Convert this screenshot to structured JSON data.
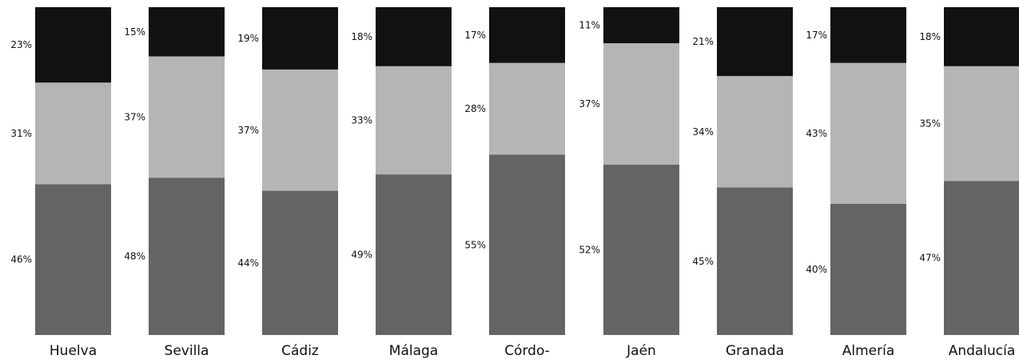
{
  "chart_data": {
    "type": "bar",
    "stacked": true,
    "normalized": true,
    "categories": [
      "Huelva",
      "Sevilla",
      "Cádiz",
      "Málaga",
      "Córdo-",
      "Jaén",
      "Granada",
      "Almería",
      "Andalucía"
    ],
    "series": [
      {
        "values": [
          46,
          48,
          44,
          49,
          55,
          52,
          45,
          40,
          47
        ],
        "color": "#646464"
      },
      {
        "values": [
          31,
          37,
          37,
          33,
          28,
          37,
          34,
          43,
          35
        ],
        "color": "#b4b5b4"
      },
      {
        "values": [
          23,
          15,
          19,
          18,
          17,
          11,
          21,
          17,
          18
        ],
        "color": "#111111"
      }
    ],
    "value_labels": [
      [
        "46%",
        "31%",
        "23%"
      ],
      [
        "48%",
        "37%",
        "15%"
      ],
      [
        "44%",
        "37%",
        "19%"
      ],
      [
        "49%",
        "33%",
        "18%"
      ],
      [
        "55%",
        "28%",
        "17%"
      ],
      [
        "52%",
        "37%",
        "11%"
      ],
      [
        "45%",
        "34%",
        "21%"
      ],
      [
        "40%",
        "43%",
        "17%"
      ],
      [
        "47%",
        "35%",
        "18%"
      ]
    ],
    "ylim": [
      0,
      100
    ],
    "grid": false,
    "legend": "none"
  }
}
